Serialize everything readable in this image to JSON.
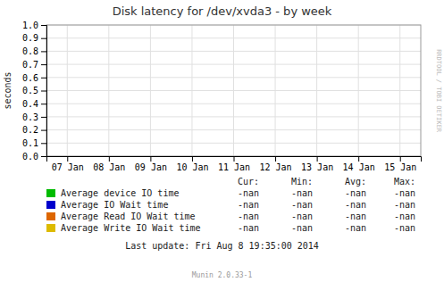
{
  "chart_data": {
    "type": "line",
    "title": "Disk latency for /dev/xvda3 - by week",
    "y_label": "seconds",
    "categories": [
      "07 Jan",
      "08 Jan",
      "09 Jan",
      "10 Jan",
      "11 Jan",
      "12 Jan",
      "13 Jan",
      "14 Jan",
      "15 Jan"
    ],
    "series": [
      {
        "name": "Average device IO time",
        "color": "#00bb00",
        "values": [
          null,
          null,
          null,
          null,
          null,
          null,
          null,
          null,
          null
        ],
        "stats": [
          "-nan",
          "-nan",
          "-nan",
          "-nan"
        ]
      },
      {
        "name": "Average IO Wait time",
        "color": "#0000cc",
        "values": [
          null,
          null,
          null,
          null,
          null,
          null,
          null,
          null,
          null
        ],
        "stats": [
          "-nan",
          "-nan",
          "-nan",
          "-nan"
        ]
      },
      {
        "name": "Average Read IO Wait time",
        "color": "#dd6600",
        "values": [
          null,
          null,
          null,
          null,
          null,
          null,
          null,
          null,
          null
        ],
        "stats": [
          "-nan",
          "-nan",
          "-nan",
          "-nan"
        ]
      },
      {
        "name": "Average Write IO Wait time",
        "color": "#ddbb00",
        "values": [
          null,
          null,
          null,
          null,
          null,
          null,
          null,
          null,
          null
        ],
        "stats": [
          "-nan",
          "-nan",
          "-nan",
          "-nan"
        ]
      }
    ],
    "legend_columns": [
      "Cur:",
      "Min:",
      "Avg:",
      "Max:"
    ],
    "ylim": [
      0.0,
      1.0
    ],
    "yticks": [
      {
        "value": 0.0,
        "label": "0.0"
      },
      0.1,
      0.2,
      0.3,
      0.4,
      0.5,
      0.6,
      0.7,
      0.8,
      0.9,
      {
        "value": 1.0,
        "label": "1.0"
      }
    ],
    "grid": true,
    "footer": "Last update: Fri Aug  8 19:35:00 2014",
    "credits": "Munin 2.0.33-1",
    "watermark": "RRDTOOL / TOBI OETIKER"
  }
}
